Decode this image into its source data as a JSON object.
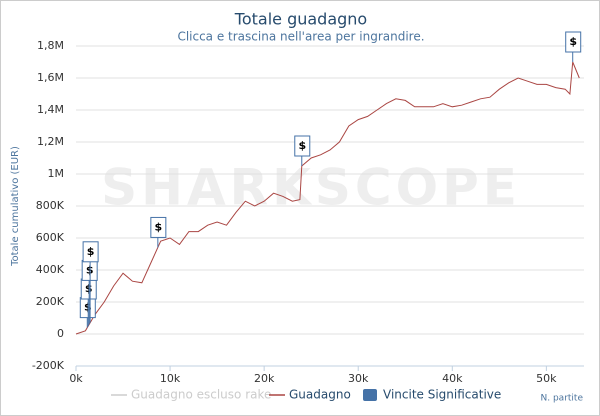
{
  "chart_data": {
    "type": "line",
    "title": "Totale guadagno",
    "subtitle": "Clicca e trascina nell'area per ingrandire.",
    "watermark": "SHARKSCOPE",
    "y_label": "Totale cumulativo (EUR)",
    "x_label": "N. partite",
    "xlim": [
      0,
      54000
    ],
    "xticks": [
      {
        "value": 0,
        "label": "0k"
      },
      {
        "value": 10000,
        "label": "10k"
      },
      {
        "value": 20000,
        "label": "20k"
      },
      {
        "value": 30000,
        "label": "30k"
      },
      {
        "value": 40000,
        "label": "40k"
      },
      {
        "value": 50000,
        "label": "50k"
      }
    ],
    "ylim": [
      -200000,
      1800000
    ],
    "yticks": [
      {
        "value": -200000,
        "label": "-200K"
      },
      0,
      {
        "value": 200000,
        "label": "200K"
      },
      {
        "value": 400000,
        "label": "400K"
      },
      {
        "value": 600000,
        "label": "600K"
      },
      {
        "value": 800000,
        "label": "800K"
      },
      {
        "value": 1000000,
        "label": "1M"
      },
      {
        "value": 1200000,
        "label": "1,2M"
      },
      {
        "value": 1400000,
        "label": "1,4M"
      },
      {
        "value": 1600000,
        "label": "1,6M"
      },
      {
        "value": 1800000,
        "label": "1,8M"
      }
    ],
    "grid": true,
    "x": [
      0,
      1000,
      2000,
      3000,
      4000,
      5000,
      6000,
      7000,
      8000,
      9000,
      10000,
      11000,
      12000,
      13000,
      14000,
      15000,
      16000,
      17000,
      18000,
      19000,
      20000,
      21000,
      22000,
      23000,
      23800,
      24000,
      25000,
      26000,
      27000,
      28000,
      29000,
      30000,
      31000,
      32000,
      33000,
      34000,
      35000,
      36000,
      37000,
      38000,
      39000,
      40000,
      41000,
      42000,
      43000,
      44000,
      45000,
      46000,
      47000,
      48000,
      49000,
      50000,
      51000,
      52000,
      52500,
      52800,
      53500
    ],
    "series": [
      {
        "name": "Guadagno escluso rake",
        "color": "#cccccc",
        "visible": false
      },
      {
        "name": "Guadagno",
        "color": "#aa4643",
        "values": [
          0,
          20000,
          120000,
          200000,
          300000,
          380000,
          330000,
          320000,
          450000,
          580000,
          600000,
          560000,
          640000,
          640000,
          680000,
          700000,
          680000,
          760000,
          830000,
          800000,
          830000,
          880000,
          860000,
          830000,
          840000,
          1050000,
          1100000,
          1120000,
          1150000,
          1200000,
          1300000,
          1340000,
          1360000,
          1400000,
          1440000,
          1470000,
          1460000,
          1420000,
          1420000,
          1420000,
          1440000,
          1420000,
          1430000,
          1450000,
          1470000,
          1480000,
          1530000,
          1570000,
          1600000,
          1580000,
          1560000,
          1560000,
          1540000,
          1530000,
          1500000,
          1700000,
          1600000
        ]
      }
    ],
    "flags": {
      "name": "Vincite Significative",
      "color": "#4572a7",
      "text": "$",
      "x": [
        1200,
        1300,
        1400,
        1500,
        8700,
        24000,
        52800
      ]
    }
  }
}
